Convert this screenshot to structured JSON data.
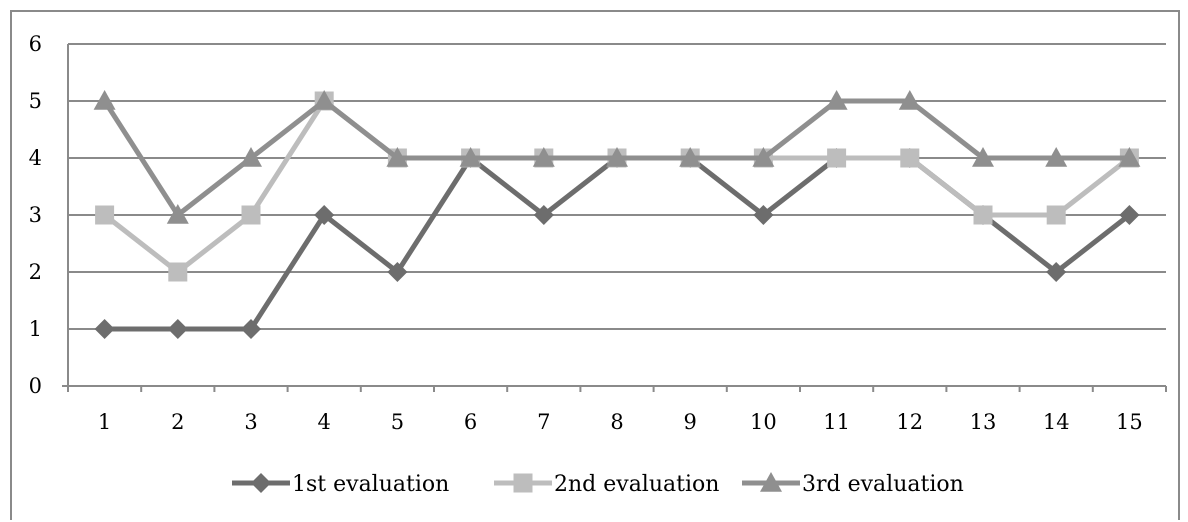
{
  "chart_data": {
    "type": "line",
    "x": [
      1,
      2,
      3,
      4,
      5,
      6,
      7,
      8,
      9,
      10,
      11,
      12,
      13,
      14,
      15
    ],
    "ylim": [
      0,
      6
    ],
    "y_ticks": [
      0,
      1,
      2,
      3,
      4,
      5,
      6
    ],
    "grid": "horizontal",
    "legend": "bottom",
    "title": "",
    "xlabel": "",
    "ylabel": "",
    "series": [
      {
        "name": "1st evaluation",
        "marker": "diamond",
        "color": "#6d6d6d",
        "values": [
          1,
          1,
          1,
          3,
          2,
          4,
          3,
          4,
          4,
          3,
          4,
          4,
          3,
          2,
          3
        ]
      },
      {
        "name": "2nd evaluation",
        "marker": "square",
        "color": "#bdbdbd",
        "values": [
          3,
          2,
          3,
          5,
          4,
          4,
          4,
          4,
          4,
          4,
          4,
          4,
          3,
          3,
          4
        ]
      },
      {
        "name": "3rd evaluation",
        "marker": "triangle",
        "color": "#8f8f8f",
        "values": [
          5,
          3,
          4,
          5,
          4,
          4,
          4,
          4,
          4,
          4,
          5,
          5,
          4,
          4,
          4
        ]
      }
    ]
  }
}
